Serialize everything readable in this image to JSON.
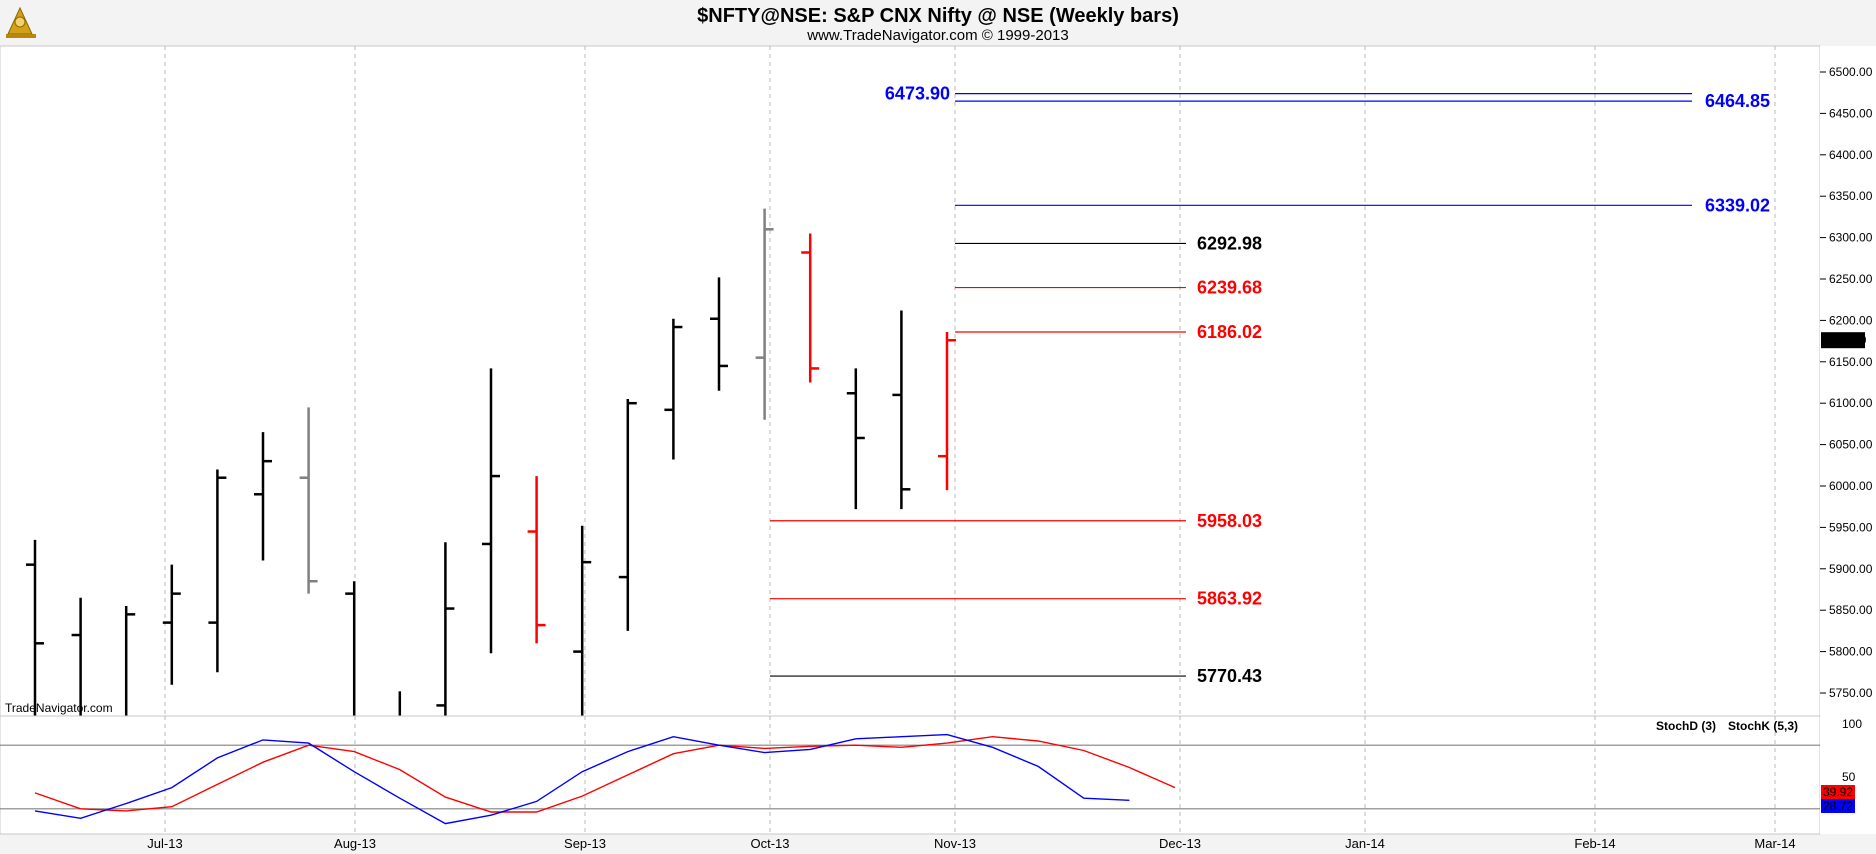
{
  "header": {
    "title": "$NFTY@NSE:  S&P CNX Nifty @ NSE  (Weekly bars)",
    "subtitle": "www.TradeNavigator.com © 1999-2013",
    "watermark": "TradeNavigator.com"
  },
  "chart_data": [
    {
      "type": "ohlc",
      "y_ticks": [
        "6500.00",
        "6450.00",
        "6400.00",
        "6350.00",
        "6300.00",
        "6250.00",
        "6200.00",
        "6150.00",
        "6100.00",
        "6050.00",
        "6000.00",
        "5950.00",
        "5900.00",
        "5850.00",
        "5800.00",
        "5750.00"
      ],
      "ylim": [
        5720,
        6530
      ],
      "x_labels": [
        "Jul-13",
        "Aug-13",
        "Sep-13",
        "Oct-13",
        "Nov-13",
        "Dec-13",
        "Jan-14",
        "Feb-14",
        "Mar-14"
      ],
      "last_price": "6176.10",
      "bars": [
        {
          "open": 5905,
          "high": 5935,
          "low": 5720,
          "close": 5810,
          "color": "#000000"
        },
        {
          "open": 5820,
          "high": 5865,
          "low": 5720,
          "close": 5720,
          "color": "#000000"
        },
        {
          "open": 5720,
          "high": 5855,
          "low": 5720,
          "close": 5845,
          "color": "#000000"
        },
        {
          "open": 5835,
          "high": 5905,
          "low": 5760,
          "close": 5870,
          "color": "#000000"
        },
        {
          "open": 5835,
          "high": 6020,
          "low": 5775,
          "close": 6010,
          "color": "#000000"
        },
        {
          "open": 5990,
          "high": 6065,
          "low": 5910,
          "close": 6030,
          "color": "#000000"
        },
        {
          "open": 6010,
          "high": 6095,
          "low": 5870,
          "close": 5885,
          "color": "#808080"
        },
        {
          "open": 5870,
          "high": 5885,
          "low": 5720,
          "close": 5720,
          "color": "#000000"
        },
        {
          "open": 5720,
          "high": 5752,
          "low": 5720,
          "close": 5720,
          "color": "#000000"
        },
        {
          "open": 5735,
          "high": 5932,
          "low": 5720,
          "close": 5852,
          "color": "#000000"
        },
        {
          "open": 5930,
          "high": 6142,
          "low": 5798,
          "close": 6012,
          "color": "#000000"
        },
        {
          "open": 5945,
          "high": 6012,
          "low": 5810,
          "close": 5832,
          "color": "#ff0000"
        },
        {
          "open": 5800,
          "high": 5952,
          "low": 5720,
          "close": 5908,
          "color": "#000000"
        },
        {
          "open": 5890,
          "high": 6105,
          "low": 5825,
          "close": 6100,
          "color": "#000000"
        },
        {
          "open": 6092,
          "high": 6202,
          "low": 6032,
          "close": 6192,
          "color": "#000000"
        },
        {
          "open": 6202,
          "high": 6252,
          "low": 6115,
          "close": 6145,
          "color": "#000000"
        },
        {
          "open": 6155,
          "high": 6335,
          "low": 6080,
          "close": 6310,
          "color": "#808080"
        },
        {
          "open": 6282,
          "high": 6305,
          "low": 6125,
          "close": 6142,
          "color": "#ff0000"
        },
        {
          "open": 6112,
          "high": 6142,
          "low": 5972,
          "close": 6058,
          "color": "#000000"
        },
        {
          "open": 6110,
          "high": 6212,
          "low": 5972,
          "close": 5996,
          "color": "#000000"
        },
        {
          "open": 6036,
          "high": 6186,
          "low": 5995,
          "close": 6176,
          "color": "#ff0000"
        }
      ],
      "levels": [
        {
          "price": 6473.9,
          "label": "6473.90",
          "color": "#0000ff",
          "label_side": "left"
        },
        {
          "price": 6464.85,
          "label": "6464.85",
          "color": "#0000ff",
          "label_side": "right"
        },
        {
          "price": 6339.02,
          "label": "6339.02",
          "color": "#0000ff",
          "label_side": "right"
        },
        {
          "price": 6292.98,
          "label": "6292.98",
          "color": "#000000",
          "label_side": "mid"
        },
        {
          "price": 6239.68,
          "label": "6239.68",
          "color": "#ff0000",
          "label_side": "mid"
        },
        {
          "price": 6186.02,
          "label": "6186.02",
          "color": "#ff0000",
          "label_side": "mid"
        },
        {
          "price": 5958.03,
          "label": "5958.03",
          "color": "#ff0000",
          "label_side": "mid"
        },
        {
          "price": 5863.92,
          "label": "5863.92",
          "color": "#ff0000",
          "label_side": "mid"
        },
        {
          "price": 5770.43,
          "label": "5770.43",
          "color": "#000000",
          "label_side": "mid"
        }
      ]
    },
    {
      "type": "line",
      "y_ticks": [
        "100",
        "50"
      ],
      "ylim": [
        0,
        100
      ],
      "reference_lines": [
        80,
        20
      ],
      "series": [
        {
          "name": "StochD (3)",
          "color": "#ff0000",
          "last_label": "39.92",
          "values": [
            35,
            20,
            18,
            22,
            43,
            64,
            80,
            74,
            57,
            31,
            17,
            17,
            32,
            52,
            72,
            80,
            77,
            79,
            80,
            78,
            82,
            88,
            84,
            75,
            59,
            40
          ]
        },
        {
          "name": "StochK (5,3)",
          "color": "#0000ff",
          "last_label": "28.72",
          "values": [
            18,
            11,
            25,
            40,
            68,
            85,
            82,
            55,
            30,
            6,
            14,
            27,
            55,
            74,
            88,
            80,
            73,
            76,
            86,
            88,
            90,
            78,
            60,
            30,
            28
          ]
        }
      ]
    }
  ]
}
